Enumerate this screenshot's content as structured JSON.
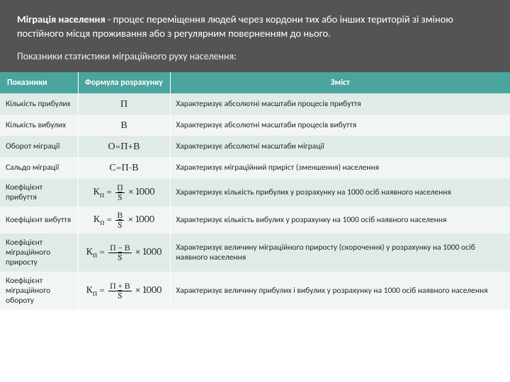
{
  "header": {
    "title_bold": "Міграція населення",
    "title_rest": " - процес переміщення людей через кордони тих або інших територій зі зміною постійного місця проживання або з регулярним поверненням до нього.",
    "subtitle": "Показники статистики міграційного руху населення:"
  },
  "columns": [
    "Показники",
    "Формула розрахунку",
    "Зміст"
  ],
  "rows": [
    {
      "name": "Кількість прибулих",
      "formula_text": "П",
      "desc": "Характеризує абсолютні масштаби процесів прибуття"
    },
    {
      "name": "Кількість вибулих",
      "formula_text": "В",
      "desc": "Характеризує абсолютні масштаби процесів вибуття"
    },
    {
      "name": "Оборот міграції",
      "formula_text": "О=П+В",
      "desc": "Характеризує абсолютні масштаби міграції"
    },
    {
      "name": "Сальдо міграції",
      "formula_text": "С=П-В",
      "desc": "Характеризує міграційний приріст (зменшення) населення"
    },
    {
      "name": "Коефіцієнт прибуття",
      "formula_frac": {
        "top": "П",
        "bot": "S̅"
      },
      "desc": "Характеризує кількість прибулих у розрахунку на 1000 осіб наявного населення"
    },
    {
      "name": "Коефіцієнт вибуття",
      "formula_frac": {
        "top": "В",
        "bot": "S̅"
      },
      "desc": "Характеризує кількість вибулих у розрахунку на 1000 осіб наявного населення"
    },
    {
      "name": "Коефіцієнт міграційного приросту",
      "formula_frac": {
        "top": "П − В",
        "bot": "S̅"
      },
      "desc": "Характеризує величину міграційного приросту (скорочення) у розрахунку на 1000 осіб наявного населення"
    },
    {
      "name": "Коефіцієнт міграційного обороту",
      "formula_frac": {
        "top": "П + В",
        "bot": "S̅"
      },
      "desc": "Характеризує величину прибулих і вибулих у розрахунку на 1000 осіб наявного населення"
    }
  ],
  "formula_prefix": "К",
  "formula_sub": "п",
  "formula_tail": " × 1000",
  "colors": {
    "header_bg": "#545454",
    "thead_bg": "#49a59e",
    "row_odd": "#e0ebe8",
    "row_even": "#f1f6f4"
  }
}
